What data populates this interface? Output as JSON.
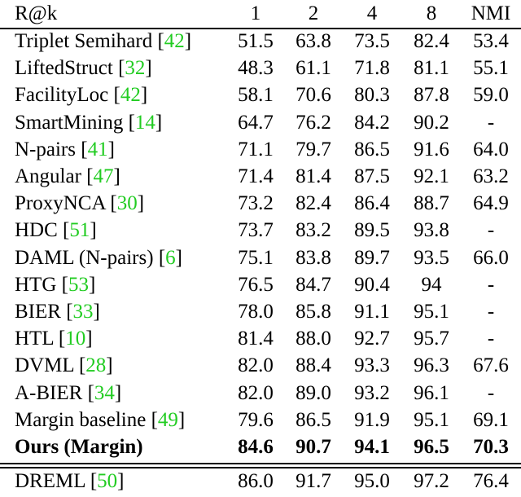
{
  "header": {
    "metric": "R@k",
    "cols": [
      "1",
      "2",
      "4",
      "8",
      "NMI"
    ]
  },
  "rows": [
    {
      "name": "Triplet Semihard",
      "ref": "42",
      "vals": [
        "51.5",
        "63.8",
        "73.5",
        "82.4",
        "53.4"
      ]
    },
    {
      "name": "LiftedStruct",
      "ref": "32",
      "vals": [
        "48.3",
        "61.1",
        "71.8",
        "81.1",
        "55.1"
      ]
    },
    {
      "name": "FacilityLoc",
      "ref": "42",
      "vals": [
        "58.1",
        "70.6",
        "80.3",
        "87.8",
        "59.0"
      ]
    },
    {
      "name": "SmartMining",
      "ref": "14",
      "vals": [
        "64.7",
        "76.2",
        "84.2",
        "90.2",
        "-"
      ]
    },
    {
      "name": "N-pairs",
      "ref": "41",
      "vals": [
        "71.1",
        "79.7",
        "86.5",
        "91.6",
        "64.0"
      ]
    },
    {
      "name": "Angular",
      "ref": "47",
      "vals": [
        "71.4",
        "81.4",
        "87.5",
        "92.1",
        "63.2"
      ]
    },
    {
      "name": "ProxyNCA",
      "ref": "30",
      "vals": [
        "73.2",
        "82.4",
        "86.4",
        "88.7",
        "64.9"
      ]
    },
    {
      "name": "HDC",
      "ref": "51",
      "vals": [
        "73.7",
        "83.2",
        "89.5",
        "93.8",
        "-"
      ]
    },
    {
      "name": "DAML (N-pairs)",
      "ref": "6",
      "vals": [
        "75.1",
        "83.8",
        "89.7",
        "93.5",
        "66.0"
      ]
    },
    {
      "name": "HTG",
      "ref": "53",
      "vals": [
        "76.5",
        "84.7",
        "90.4",
        "94",
        "-"
      ]
    },
    {
      "name": "BIER",
      "ref": "33",
      "vals": [
        "78.0",
        "85.8",
        "91.1",
        "95.1",
        "-"
      ]
    },
    {
      "name": "HTL",
      "ref": "10",
      "vals": [
        "81.4",
        "88.0",
        "92.7",
        "95.7",
        "-"
      ]
    },
    {
      "name": "DVML",
      "ref": "28",
      "vals": [
        "82.0",
        "88.4",
        "93.3",
        "96.3",
        "67.6"
      ]
    },
    {
      "name": "A-BIER",
      "ref": "34",
      "vals": [
        "82.0",
        "89.0",
        "93.2",
        "96.1",
        "-"
      ]
    },
    {
      "name": "Margin baseline",
      "ref": "49",
      "vals": [
        "79.6",
        "86.5",
        "91.9",
        "95.1",
        "69.1"
      ]
    }
  ],
  "ours": {
    "name": "Ours (Margin)",
    "vals": [
      "84.6",
      "90.7",
      "94.1",
      "96.5",
      "70.3"
    ]
  },
  "dreml": {
    "name": "DREML",
    "ref": "50",
    "vals": [
      "86.0",
      "91.7",
      "95.0",
      "97.2",
      "76.4"
    ]
  }
}
